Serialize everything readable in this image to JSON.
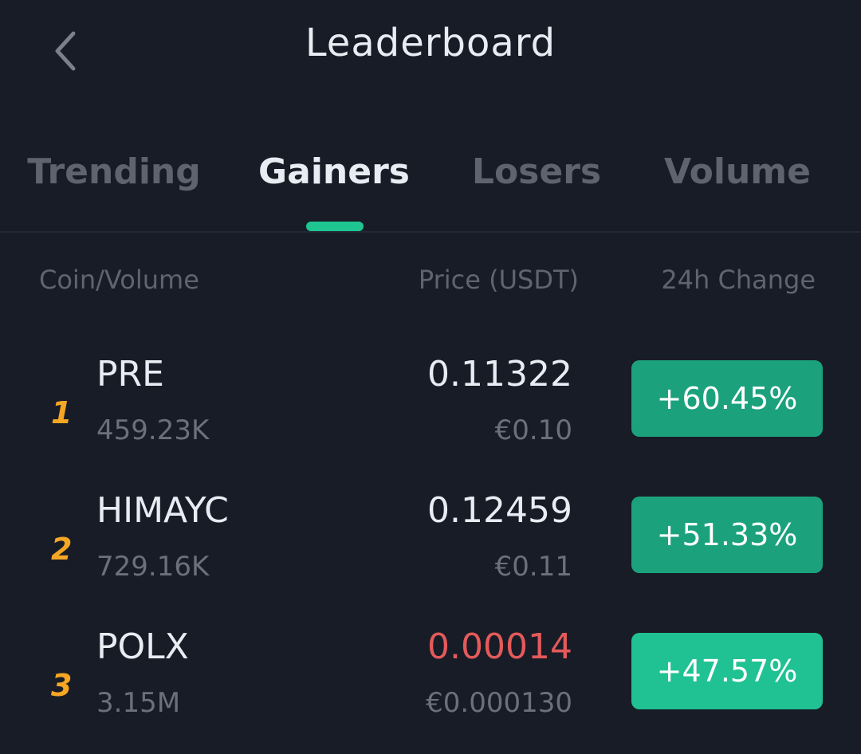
{
  "header": {
    "title": "Leaderboard",
    "back_icon": "chevron-left-icon"
  },
  "tabs": [
    {
      "label": "Trending",
      "active": false
    },
    {
      "label": "Gainers",
      "active": true
    },
    {
      "label": "Losers",
      "active": false
    },
    {
      "label": "Volume",
      "active": false
    }
  ],
  "columns": {
    "coin_volume": "Coin/Volume",
    "price": "Price (USDT)",
    "change": "24h Change"
  },
  "rows": [
    {
      "rank": "1",
      "symbol": "PRE",
      "volume": "459.23K",
      "price": "0.11322",
      "fiat": "€0.10",
      "change": "+60.45%",
      "price_color": "#e9ecf2",
      "change_color": "#1ba27d"
    },
    {
      "rank": "2",
      "symbol": "HIMAYC",
      "volume": "729.16K",
      "price": "0.12459",
      "fiat": "€0.11",
      "change": "+51.33%",
      "price_color": "#e9ecf2",
      "change_color": "#1ba27d"
    },
    {
      "rank": "3",
      "symbol": "POLX",
      "volume": "3.15M",
      "price": "0.00014",
      "fiat": "€0.000130",
      "change": "+47.57%",
      "price_color": "#e45a5a",
      "change_color": "#20c293"
    }
  ],
  "colors": {
    "background": "#181c27",
    "accent": "#1fc591",
    "rank": "#f5a623"
  }
}
